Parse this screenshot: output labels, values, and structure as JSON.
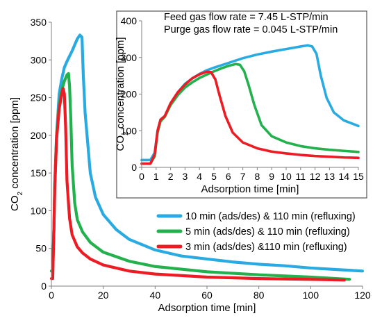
{
  "chart_data": [
    {
      "id": "main",
      "type": "line",
      "xlabel": "Adsorption time [min]",
      "ylabel": "CO2 concentration [ppm]",
      "ylabel_main": "CO",
      "ylabel_sub": "2",
      "ylabel_rest": " concentration [ppm]",
      "xlim": [
        0,
        120
      ],
      "ylim": [
        0,
        350
      ],
      "xticks": [
        "0",
        "20",
        "40",
        "60",
        "80",
        "100",
        "120"
      ],
      "yticks": [
        "0",
        "50",
        "100",
        "150",
        "200",
        "250",
        "300",
        "350"
      ],
      "grid": false,
      "legend_position": "lower-right",
      "series": [
        {
          "name": "10 min (ads/des) & 110 min (refluxing)",
          "color": "#29abe2",
          "points": [
            [
              0,
              20
            ],
            [
              0.5,
              20
            ],
            [
              1,
              80
            ],
            [
              1.3,
              135
            ],
            [
              2,
              200
            ],
            [
              3,
              255
            ],
            [
              4,
              275
            ],
            [
              5,
              290
            ],
            [
              6,
              298
            ],
            [
              7,
              305
            ],
            [
              8,
              312
            ],
            [
              9,
              320
            ],
            [
              10,
              328
            ],
            [
              11,
              333
            ],
            [
              11.8,
              330
            ],
            [
              12.3,
              280
            ],
            [
              13,
              230
            ],
            [
              14,
              190
            ],
            [
              15,
              150
            ],
            [
              17,
              118
            ],
            [
              20,
              95
            ],
            [
              25,
              75
            ],
            [
              30,
              62
            ],
            [
              40,
              48
            ],
            [
              50,
              40
            ],
            [
              60,
              36
            ],
            [
              70,
              32
            ],
            [
              80,
              29
            ],
            [
              90,
              27
            ],
            [
              100,
              24
            ],
            [
              110,
              22
            ],
            [
              120,
              20
            ]
          ]
        },
        {
          "name": "5 min (ads/des) & 110 min (refluxing)",
          "color": "#22b14c",
          "points": [
            [
              0,
              20
            ],
            [
              0.5,
              20
            ],
            [
              1,
              80
            ],
            [
              1.3,
              135
            ],
            [
              2,
              200
            ],
            [
              3,
              240
            ],
            [
              4,
              260
            ],
            [
              5,
              272
            ],
            [
              6,
              280
            ],
            [
              6.6,
              282
            ],
            [
              7,
              265
            ],
            [
              7.5,
              220
            ],
            [
              8,
              160
            ],
            [
              9,
              110
            ],
            [
              10,
              88
            ],
            [
              12,
              72
            ],
            [
              15,
              58
            ],
            [
              20,
              45
            ],
            [
              30,
              33
            ],
            [
              40,
              26
            ],
            [
              60,
              19
            ],
            [
              80,
              15
            ],
            [
              100,
              12
            ],
            [
              115,
              9
            ]
          ]
        },
        {
          "name": "3 min (ads/des) &110 min (refluxing)",
          "color": "#ed1c24",
          "points": [
            [
              0,
              10
            ],
            [
              0.5,
              10
            ],
            [
              1,
              80
            ],
            [
              1.3,
              130
            ],
            [
              2,
              195
            ],
            [
              3,
              235
            ],
            [
              4,
              255
            ],
            [
              4.5,
              262
            ],
            [
              5,
              255
            ],
            [
              5.5,
              210
            ],
            [
              6,
              140
            ],
            [
              7,
              90
            ],
            [
              8,
              68
            ],
            [
              10,
              52
            ],
            [
              12,
              44
            ],
            [
              15,
              36
            ],
            [
              20,
              28
            ],
            [
              30,
              20
            ],
            [
              40,
              16
            ],
            [
              60,
              12
            ],
            [
              80,
              10
            ],
            [
              100,
              9
            ],
            [
              113,
              8
            ]
          ]
        }
      ]
    },
    {
      "id": "inset",
      "type": "line",
      "xlabel": "Adsorption time [min]",
      "ylabel_main": "CO",
      "ylabel_sub": "2",
      "ylabel_rest": " concentration [ppm]",
      "xlim": [
        0,
        15
      ],
      "ylim": [
        0,
        400
      ],
      "xticks": [
        "0",
        "1",
        "2",
        "3",
        "4",
        "5",
        "6",
        "7",
        "8",
        "9",
        "10",
        "11",
        "12",
        "13",
        "14",
        "15"
      ],
      "yticks": [
        "0",
        "100",
        "200",
        "300",
        "400"
      ],
      "grid": false,
      "annotations": [
        "Feed gas flow rate = 7.45 L-STP/min",
        "Purge gas flow rate = 0.045 L-STP/min"
      ],
      "series": [
        {
          "color": "#29abe2",
          "points": [
            [
              0,
              20
            ],
            [
              0.6,
              20
            ],
            [
              0.9,
              40
            ],
            [
              1.1,
              100
            ],
            [
              1.3,
              130
            ],
            [
              1.6,
              140
            ],
            [
              2,
              175
            ],
            [
              2.5,
              205
            ],
            [
              3,
              228
            ],
            [
              3.5,
              243
            ],
            [
              4,
              255
            ],
            [
              4.5,
              265
            ],
            [
              5,
              272
            ],
            [
              6,
              285
            ],
            [
              7,
              298
            ],
            [
              8,
              308
            ],
            [
              9,
              316
            ],
            [
              10,
              323
            ],
            [
              11,
              330
            ],
            [
              11.5,
              333
            ],
            [
              11.8,
              330
            ],
            [
              12.1,
              310
            ],
            [
              12.4,
              250
            ],
            [
              12.8,
              190
            ],
            [
              13.3,
              150
            ],
            [
              14,
              128
            ],
            [
              15,
              113
            ]
          ]
        },
        {
          "color": "#22b14c",
          "points": [
            [
              0,
              10
            ],
            [
              0.6,
              10
            ],
            [
              0.9,
              30
            ],
            [
              1.1,
              95
            ],
            [
              1.3,
              125
            ],
            [
              1.6,
              138
            ],
            [
              2,
              170
            ],
            [
              2.5,
              197
            ],
            [
              3,
              218
            ],
            [
              3.5,
              232
            ],
            [
              4,
              244
            ],
            [
              4.5,
              253
            ],
            [
              5,
              262
            ],
            [
              5.5,
              270
            ],
            [
              6,
              277
            ],
            [
              6.5,
              282
            ],
            [
              6.8,
              280
            ],
            [
              7.1,
              262
            ],
            [
              7.4,
              225
            ],
            [
              7.8,
              170
            ],
            [
              8.3,
              115
            ],
            [
              9,
              85
            ],
            [
              10,
              68
            ],
            [
              11,
              58
            ],
            [
              12,
              52
            ],
            [
              13,
              48
            ],
            [
              14,
              45
            ],
            [
              15,
              42
            ]
          ]
        },
        {
          "color": "#ed1c24",
          "points": [
            [
              0,
              10
            ],
            [
              0.6,
              10
            ],
            [
              0.9,
              35
            ],
            [
              1.1,
              100
            ],
            [
              1.3,
              130
            ],
            [
              1.6,
              140
            ],
            [
              2,
              175
            ],
            [
              2.5,
              205
            ],
            [
              3,
              226
            ],
            [
              3.5,
              243
            ],
            [
              4,
              254
            ],
            [
              4.5,
              261
            ],
            [
              4.8,
              260
            ],
            [
              5.1,
              240
            ],
            [
              5.4,
              195
            ],
            [
              5.8,
              140
            ],
            [
              6.3,
              95
            ],
            [
              7,
              68
            ],
            [
              8,
              52
            ],
            [
              9,
              43
            ],
            [
              10,
              38
            ],
            [
              11,
              34
            ],
            [
              12,
              31
            ],
            [
              13,
              29
            ],
            [
              14,
              27
            ],
            [
              15,
              26
            ]
          ]
        }
      ]
    }
  ]
}
